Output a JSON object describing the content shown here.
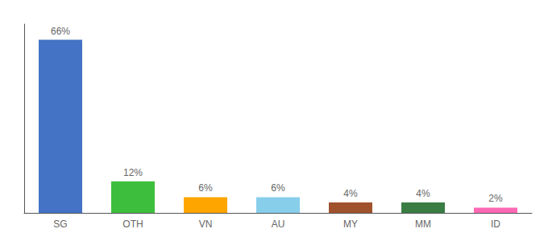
{
  "chart_data": {
    "type": "bar",
    "categories": [
      "SG",
      "OTH",
      "VN",
      "AU",
      "MY",
      "MM",
      "ID"
    ],
    "values": [
      66,
      12,
      6,
      6,
      4,
      4,
      2
    ],
    "value_labels": [
      "66%",
      "12%",
      "6%",
      "6%",
      "4%",
      "4%",
      "2%"
    ],
    "colors": [
      "#4472C4",
      "#3DBE3D",
      "#FFA500",
      "#87CEEB",
      "#A0522D",
      "#3A7D44",
      "#FF69B4"
    ],
    "ylim": [
      0,
      72
    ],
    "data_labels": true,
    "tick_labels": "x",
    "grid": false
  }
}
